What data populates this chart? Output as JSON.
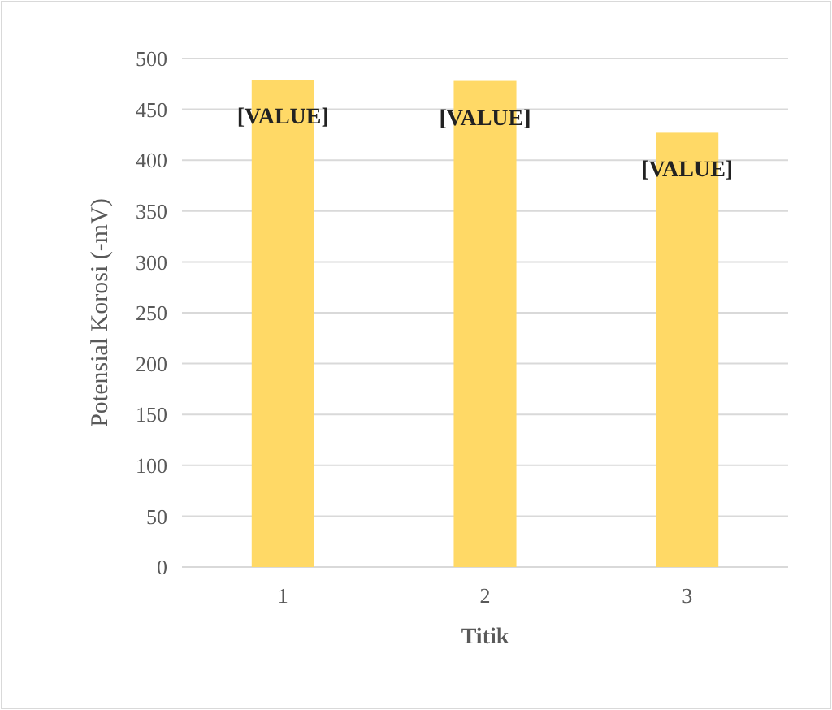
{
  "chart_data": {
    "type": "bar",
    "xlabel": "Titik",
    "ylabel": "Potensial Korosi (-mV)",
    "categories": [
      "1",
      "2",
      "3"
    ],
    "values": [
      479,
      478,
      427
    ],
    "value_labels": [
      "[VALUE]",
      "[VALUE]",
      "[VALUE]"
    ],
    "color": "#ffd966",
    "ylim": [
      0,
      500
    ],
    "yticks": [
      0,
      50,
      100,
      150,
      200,
      250,
      300,
      350,
      400,
      450,
      500
    ],
    "grid": "y"
  }
}
